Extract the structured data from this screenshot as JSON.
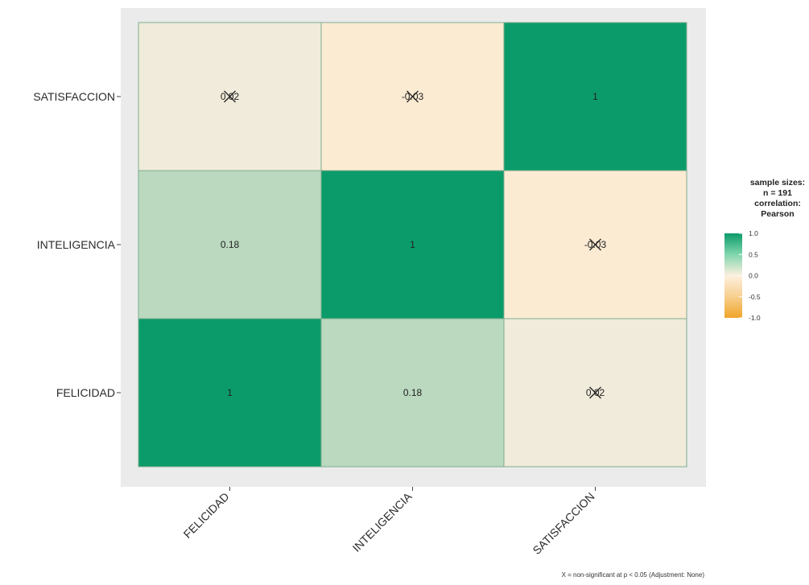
{
  "chart_data": {
    "type": "heatmap",
    "title": "",
    "xlabel": "",
    "ylabel": "",
    "x_categories": [
      "FELICIDAD",
      "INTELIGENCIA",
      "SATISFACCION"
    ],
    "y_categories": [
      "SATISFACCION",
      "INTELIGENCIA",
      "FELICIDAD"
    ],
    "cells": [
      {
        "x": "FELICIDAD",
        "y": "SATISFACCION",
        "value": 0.02,
        "label": "0.02",
        "crossed": true
      },
      {
        "x": "INTELIGENCIA",
        "y": "SATISFACCION",
        "value": -0.03,
        "label": "-0.03",
        "crossed": true
      },
      {
        "x": "SATISFACCION",
        "y": "SATISFACCION",
        "value": 1,
        "label": "1",
        "crossed": false
      },
      {
        "x": "FELICIDAD",
        "y": "INTELIGENCIA",
        "value": 0.18,
        "label": "0.18",
        "crossed": false
      },
      {
        "x": "INTELIGENCIA",
        "y": "INTELIGENCIA",
        "value": 1,
        "label": "1",
        "crossed": false
      },
      {
        "x": "SATISFACCION",
        "y": "INTELIGENCIA",
        "value": -0.03,
        "label": "-0.03",
        "crossed": true
      },
      {
        "x": "FELICIDAD",
        "y": "FELICIDAD",
        "value": 1,
        "label": "1",
        "crossed": false
      },
      {
        "x": "INTELIGENCIA",
        "y": "FELICIDAD",
        "value": 0.18,
        "label": "0.18",
        "crossed": false
      },
      {
        "x": "SATISFACCION",
        "y": "FELICIDAD",
        "value": 0.02,
        "label": "0.02",
        "crossed": true
      }
    ],
    "color_scale": {
      "low": "#f0a52a",
      "mid": "#fdf0e0",
      "high": "#0b9b6a",
      "range": [
        -1,
        1
      ]
    },
    "legend": {
      "title_lines": [
        "sample sizes:",
        "n = 191",
        "correlation:",
        "Pearson"
      ],
      "ticks": [
        {
          "value": 1,
          "label": "1.0"
        },
        {
          "value": 0.5,
          "label": "0.5"
        },
        {
          "value": 0,
          "label": "0.0"
        },
        {
          "value": -0.5,
          "label": "-0.5"
        },
        {
          "value": -1,
          "label": "-1.0"
        }
      ],
      "position": "right"
    },
    "panel_background": "#ebebeb"
  },
  "caption": "X = non-significant at p < 0.05 (Adjustment: None)"
}
